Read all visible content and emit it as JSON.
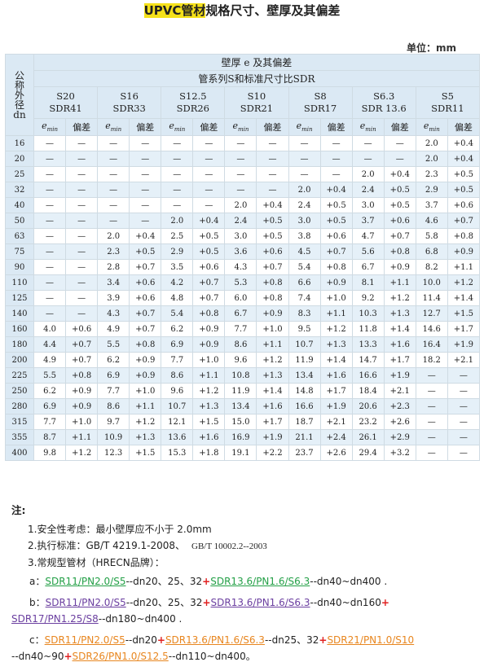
{
  "title": {
    "highlight": "UPVC管材",
    "rest": "规格尺寸、壁厚及其偏差"
  },
  "unit_label": "单位：mm",
  "table": {
    "dn_header": [
      "公",
      "称",
      "外",
      "径",
      "dn"
    ],
    "wall_header": "壁厚 e 及其偏差",
    "series_header": "管系列S和标准尺寸比SDR",
    "series": [
      {
        "s": "S20",
        "sdr": "SDR41"
      },
      {
        "s": "S16",
        "sdr": "SDR33"
      },
      {
        "s": "S12.5",
        "sdr": "SDR26"
      },
      {
        "s": "S10",
        "sdr": "SDR21"
      },
      {
        "s": "S8",
        "sdr": "SDR17"
      },
      {
        "s": "S6.3",
        "sdr": "SDR 13.6"
      },
      {
        "s": "S5",
        "sdr": "SDR11"
      }
    ],
    "sub_emin": "e",
    "sub_emin_sub": "min",
    "sub_dev": "偏差",
    "rows": [
      [
        "16",
        "—",
        "—",
        "—",
        "—",
        "—",
        "—",
        "—",
        "—",
        "—",
        "—",
        "—",
        "—",
        "2.0",
        "+0.4"
      ],
      [
        "20",
        "—",
        "—",
        "—",
        "—",
        "—",
        "—",
        "—",
        "—",
        "—",
        "—",
        "—",
        "—",
        "2.0",
        "+0.4"
      ],
      [
        "25",
        "—",
        "—",
        "—",
        "—",
        "—",
        "—",
        "—",
        "—",
        "—",
        "—",
        "2.0",
        "+0.4",
        "2.3",
        "+0.5"
      ],
      [
        "32",
        "—",
        "—",
        "—",
        "—",
        "—",
        "—",
        "—",
        "—",
        "2.0",
        "+0.4",
        "2.4",
        "+0.5",
        "2.9",
        "+0.5"
      ],
      [
        "40",
        "—",
        "—",
        "—",
        "—",
        "—",
        "—",
        "2.0",
        "+0.4",
        "2.4",
        "+0.5",
        "3.0",
        "+0.5",
        "3.7",
        "+0.6"
      ],
      [
        "50",
        "—",
        "—",
        "—",
        "—",
        "2.0",
        "+0.4",
        "2.4",
        "+0.5",
        "3.0",
        "+0.5",
        "3.7",
        "+0.6",
        "4.6",
        "+0.7"
      ],
      [
        "63",
        "—",
        "—",
        "2.0",
        "+0.4",
        "2.5",
        "+0.5",
        "3.0",
        "+0.5",
        "3.8",
        "+0.6",
        "4.7",
        "+0.7",
        "5.8",
        "+0.8"
      ],
      [
        "75",
        "—",
        "—",
        "2.3",
        "+0.5",
        "2.9",
        "+0.5",
        "3.6",
        "+0.6",
        "4.5",
        "+0.7",
        "5.6",
        "+0.8",
        "6.8",
        "+0.9"
      ],
      [
        "90",
        "—",
        "—",
        "2.8",
        "+0.7",
        "3.5",
        "+0.6",
        "4.3",
        "+0.7",
        "5.4",
        "+0.8",
        "6.7",
        "+0.9",
        "8.2",
        "+1.1"
      ],
      [
        "110",
        "—",
        "—",
        "3.4",
        "+0.6",
        "4.2",
        "+0.7",
        "5.3",
        "+0.8",
        "6.6",
        "+0.9",
        "8.1",
        "+1.1",
        "10.0",
        "+1.2"
      ],
      [
        "125",
        "—",
        "—",
        "3.9",
        "+0.6",
        "4.8",
        "+0.7",
        "6.0",
        "+0.8",
        "7.4",
        "+1.0",
        "9.2",
        "+1.2",
        "11.4",
        "+1.4"
      ],
      [
        "140",
        "—",
        "—",
        "4.3",
        "+0.7",
        "5.4",
        "+0.8",
        "6.7",
        "+0.9",
        "8.3",
        "+1.1",
        "10.3",
        "+1.3",
        "12.7",
        "+1.5"
      ],
      [
        "160",
        "4.0",
        "+0.6",
        "4.9",
        "+0.7",
        "6.2",
        "+0.9",
        "7.7",
        "+1.0",
        "9.5",
        "+1.2",
        "11.8",
        "+1.4",
        "14.6",
        "+1.7"
      ],
      [
        "180",
        "4.4",
        "+0.7",
        "5.5",
        "+0.8",
        "6.9",
        "+0.9",
        "8.6",
        "+1.1",
        "10.7",
        "+1.3",
        "13.3",
        "+1.6",
        "16.4",
        "+1.9"
      ],
      [
        "200",
        "4.9",
        "+0.7",
        "6.2",
        "+0.9",
        "7.7",
        "+1.0",
        "9.6",
        "+1.2",
        "11.9",
        "+1.4",
        "14.7",
        "+1.7",
        "18.2",
        "+2.1"
      ],
      [
        "225",
        "5.5",
        "+0.8",
        "6.9",
        "+0.9",
        "8.6",
        "+1.1",
        "10.8",
        "+1.3",
        "13.4",
        "+1.6",
        "16.6",
        "+1.9",
        "—",
        "—"
      ],
      [
        "250",
        "6.2",
        "+0.9",
        "7.7",
        "+1.0",
        "9.6",
        "+1.2",
        "11.9",
        "+1.4",
        "14.8",
        "+1.7",
        "18.4",
        "+2.1",
        "—",
        "—"
      ],
      [
        "280",
        "6.9",
        "+0.9",
        "8.6",
        "+1.1",
        "10.7",
        "+1.3",
        "13.4",
        "+1.6",
        "16.6",
        "+1.9",
        "20.6",
        "+2.3",
        "—",
        "—"
      ],
      [
        "315",
        "7.7",
        "+1.0",
        "9.7",
        "+1.2",
        "12.1",
        "+1.5",
        "15.0",
        "+1.7",
        "18.7",
        "+2.1",
        "23.2",
        "+2.6",
        "—",
        "—"
      ],
      [
        "355",
        "8.7",
        "+1.1",
        "10.9",
        "+1.3",
        "13.6",
        "+1.6",
        "16.9",
        "+1.9",
        "21.1",
        "+2.4",
        "26.1",
        "+2.9",
        "—",
        "—"
      ],
      [
        "400",
        "9.8",
        "+1.2",
        "12.3",
        "+1.5",
        "15.3",
        "+1.8",
        "19.1",
        "+2.2",
        "23.7",
        "+2.6",
        "29.4",
        "+3.2",
        "—",
        "—"
      ]
    ]
  },
  "notes": {
    "heading": "注:",
    "line1": "1.安全性考虑：最小壁厚应不小于 2.0mm",
    "line2a": "2.执行标准：GB/T 4219.1-2008、",
    "line2b": "GB/T  10002.2--2003",
    "line3": "3.常规型管材（HRECN品牌）：",
    "a": {
      "prefix": "a：",
      "spec1": "SDR11/PN2.0/S5",
      "t1": "--dn20、25、32",
      "plus": "+",
      "spec2": "SDR13.6/PN1.6/S6.3",
      "t2": "--dn40~dn400 ."
    },
    "b": {
      "prefix": "b：",
      "spec1": "SDR11/PN2.0/S5",
      "t1": "--dn20、25、32",
      "plus1": "+",
      "spec2": "SDR13.6/PN1.6/S6.3",
      "t2": "--dn40~dn160",
      "plus2": "+",
      "spec3": "SDR17/PN1.25/S8",
      "t3": "--dn180~dn400 ."
    },
    "c": {
      "prefix": "c：",
      "spec1": "SDR11/PN2.0/S5",
      "t1": "--dn20",
      "plus1": "+",
      "spec2": "SDR13.6/PN1.6/S6.3",
      "t2": "--dn25、32",
      "plus2": "+",
      "spec3": "SDR21/PN1.0/S10",
      "t3": "--dn40~90",
      "plus3": "+",
      "spec4": "SDR26/PN1.0/S12.5",
      "t4": "--dn110~dn400。"
    }
  }
}
